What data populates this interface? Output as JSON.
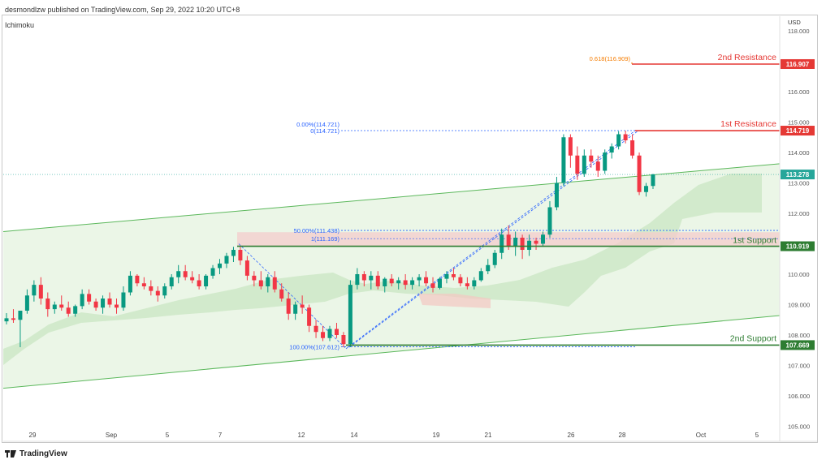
{
  "header": {
    "publisher_line": "desmondlzw published on TradingView.com, Sep 29, 2022 10:20 UTC+8",
    "indicator": "Ichimoku"
  },
  "footer": {
    "brand": "TradingView"
  },
  "chart_data": {
    "type": "candlestick",
    "currency_label": "USD",
    "ylim": [
      105.0,
      118.1
    ],
    "y_ticks": [
      "118.000",
      "117.000",
      "116.000",
      "115.000",
      "114.000",
      "113.000",
      "112.000",
      "111.000",
      "110.000",
      "109.000",
      "108.000",
      "107.000",
      "106.000",
      "105.000"
    ],
    "x_ticks": [
      "29",
      "Sep",
      "5",
      "7",
      "12",
      "14",
      "19",
      "21",
      "26",
      "28",
      "Oct",
      "5"
    ],
    "price_labels": [
      {
        "name": "2nd Resistance",
        "value": "116.907",
        "color": "#e53935"
      },
      {
        "name": "1st Resistance",
        "value": "114.719",
        "color": "#e53935"
      },
      {
        "name": "current",
        "value": "113.278",
        "color": "#26a69a"
      },
      {
        "name": "1st Support",
        "value": "110.919",
        "color": "#2e7d32"
      },
      {
        "name": "2nd Support",
        "value": "107.669",
        "color": "#2e7d32"
      }
    ],
    "levels": [
      {
        "label": "2nd Resistance",
        "value": 116.907,
        "color": "#e53935"
      },
      {
        "label": "1st Resistance",
        "value": 114.719,
        "color": "#e53935"
      },
      {
        "label": "1st Support",
        "value": 110.919,
        "color": "#2e7d32"
      },
      {
        "label": "2nd Support",
        "value": 107.669,
        "color": "#2e7d32"
      }
    ],
    "fib_labels": {
      "ext": "0.618(116.909)",
      "fib0_a": "0.00%(114.721)",
      "fib0_b": "0(114.721)",
      "fib50_a": "50.00%(111.438)",
      "fib50_b": "1(111.169)",
      "fib100": "100.00%(107.612)"
    },
    "fib_values": {
      "ext": 116.909,
      "fib0": 114.721,
      "fib50": 111.438,
      "fib50b": 111.169,
      "fib100": 107.612
    },
    "support_zone": [
      110.919,
      111.38
    ],
    "channel": {
      "upper": [
        {
          "x": "Aug 26",
          "y": 111.4
        },
        {
          "x": "Oct 6",
          "y": 113.63
        }
      ],
      "lower": [
        {
          "x": "Aug 26",
          "y": 106.25
        },
        {
          "x": "Oct 6",
          "y": 108.64
        }
      ]
    },
    "candles": [
      [
        108.45,
        108.72,
        108.35,
        108.55
      ],
      [
        108.55,
        108.85,
        108.4,
        108.5
      ],
      [
        108.5,
        108.7,
        107.6,
        108.8
      ],
      [
        108.8,
        109.5,
        108.7,
        109.3
      ],
      [
        109.3,
        109.8,
        109.1,
        109.65
      ],
      [
        109.65,
        109.9,
        109.0,
        109.2
      ],
      [
        109.2,
        109.4,
        108.6,
        108.85
      ],
      [
        108.85,
        109.1,
        108.7,
        109.0
      ],
      [
        109.0,
        109.3,
        108.8,
        108.9
      ],
      [
        108.9,
        109.1,
        108.6,
        108.7
      ],
      [
        108.7,
        109.0,
        108.6,
        108.95
      ],
      [
        108.95,
        109.5,
        108.85,
        109.35
      ],
      [
        109.35,
        109.5,
        109.0,
        109.1
      ],
      [
        109.1,
        109.2,
        108.8,
        108.9
      ],
      [
        108.9,
        109.3,
        108.7,
        109.2
      ],
      [
        109.2,
        109.4,
        108.9,
        109.0
      ],
      [
        109.0,
        109.2,
        108.7,
        108.9
      ],
      [
        108.9,
        109.6,
        108.8,
        109.4
      ],
      [
        109.4,
        110.1,
        109.3,
        109.95
      ],
      [
        109.95,
        110.0,
        109.6,
        109.7
      ],
      [
        109.7,
        109.9,
        109.5,
        109.6
      ],
      [
        109.6,
        109.8,
        109.3,
        109.45
      ],
      [
        109.45,
        109.6,
        109.1,
        109.3
      ],
      [
        109.3,
        109.7,
        109.2,
        109.6
      ],
      [
        109.6,
        110.0,
        109.5,
        109.9
      ],
      [
        109.9,
        110.3,
        109.7,
        110.1
      ],
      [
        110.1,
        110.3,
        109.8,
        109.9
      ],
      [
        109.9,
        110.1,
        109.7,
        109.8
      ],
      [
        109.8,
        110.0,
        109.5,
        109.6
      ],
      [
        109.6,
        110.0,
        109.5,
        109.95
      ],
      [
        109.95,
        110.3,
        109.85,
        110.2
      ],
      [
        110.2,
        110.5,
        110.0,
        110.35
      ],
      [
        110.35,
        110.7,
        110.2,
        110.6
      ],
      [
        110.6,
        110.9,
        110.4,
        110.8
      ],
      [
        110.8,
        110.9,
        110.3,
        110.45
      ],
      [
        110.45,
        110.6,
        109.8,
        109.95
      ],
      [
        109.95,
        110.1,
        109.6,
        109.8
      ],
      [
        109.8,
        110.1,
        109.5,
        109.6
      ],
      [
        109.6,
        110.0,
        109.4,
        109.9
      ],
      [
        109.9,
        110.1,
        109.4,
        109.5
      ],
      [
        109.5,
        109.7,
        109.1,
        109.2
      ],
      [
        109.2,
        109.4,
        108.5,
        108.7
      ],
      [
        108.7,
        109.1,
        108.5,
        109.0
      ],
      [
        109.0,
        109.3,
        108.7,
        108.9
      ],
      [
        108.9,
        109.0,
        108.1,
        108.3
      ],
      [
        108.3,
        108.5,
        107.9,
        108.1
      ],
      [
        108.1,
        108.3,
        107.8,
        107.9
      ],
      [
        107.9,
        108.3,
        107.8,
        108.2
      ],
      [
        108.2,
        108.4,
        107.9,
        108.0
      ],
      [
        108.0,
        108.1,
        107.6,
        107.7
      ],
      [
        107.7,
        109.8,
        107.6,
        109.65
      ],
      [
        109.65,
        110.2,
        109.5,
        110.0
      ],
      [
        110.0,
        110.1,
        109.6,
        109.8
      ],
      [
        109.8,
        110.1,
        109.5,
        109.95
      ],
      [
        109.95,
        110.1,
        109.5,
        109.6
      ],
      [
        109.6,
        109.9,
        109.4,
        109.85
      ],
      [
        109.85,
        110.0,
        109.6,
        109.7
      ],
      [
        109.7,
        109.9,
        109.5,
        109.8
      ],
      [
        109.8,
        110.0,
        109.5,
        109.65
      ],
      [
        109.65,
        109.9,
        109.5,
        109.8
      ],
      [
        109.8,
        110.0,
        109.6,
        109.9
      ],
      [
        109.9,
        110.1,
        109.6,
        109.7
      ],
      [
        109.7,
        109.9,
        109.4,
        109.55
      ],
      [
        109.55,
        109.9,
        109.5,
        109.85
      ],
      [
        109.85,
        110.1,
        109.7,
        110.0
      ],
      [
        110.0,
        110.2,
        109.8,
        109.9
      ],
      [
        109.9,
        110.0,
        109.6,
        109.7
      ],
      [
        109.7,
        109.9,
        109.5,
        109.6
      ],
      [
        109.6,
        109.9,
        109.5,
        109.8
      ],
      [
        109.8,
        110.2,
        109.75,
        110.1
      ],
      [
        110.1,
        110.5,
        110.0,
        110.3
      ],
      [
        110.3,
        110.8,
        110.2,
        110.7
      ],
      [
        110.7,
        111.5,
        110.5,
        111.3
      ],
      [
        111.3,
        111.6,
        110.8,
        110.9
      ],
      [
        110.9,
        111.4,
        110.6,
        111.2
      ],
      [
        111.2,
        111.3,
        110.5,
        110.8
      ],
      [
        110.8,
        111.3,
        110.6,
        111.1
      ],
      [
        111.1,
        111.2,
        110.8,
        111.0
      ],
      [
        111.0,
        111.4,
        110.9,
        111.3
      ],
      [
        111.3,
        112.4,
        111.2,
        112.2
      ],
      [
        112.2,
        113.2,
        112.1,
        113.0
      ],
      [
        113.0,
        114.6,
        112.9,
        114.5
      ],
      [
        114.5,
        114.6,
        113.5,
        113.9
      ],
      [
        113.9,
        114.2,
        113.1,
        113.3
      ],
      [
        113.3,
        114.1,
        113.2,
        113.9
      ],
      [
        113.9,
        114.1,
        113.5,
        113.7
      ],
      [
        113.7,
        113.9,
        113.2,
        113.4
      ],
      [
        113.4,
        114.1,
        113.3,
        114.0
      ],
      [
        114.0,
        114.3,
        113.8,
        114.2
      ],
      [
        114.2,
        114.7,
        114.1,
        114.6
      ],
      [
        114.6,
        114.72,
        114.3,
        114.4
      ],
      [
        114.4,
        114.6,
        113.8,
        113.9
      ],
      [
        113.9,
        114.0,
        112.6,
        112.7
      ],
      [
        112.7,
        113.0,
        112.55,
        112.9
      ],
      [
        112.9,
        113.3,
        112.8,
        113.278
      ]
    ]
  }
}
